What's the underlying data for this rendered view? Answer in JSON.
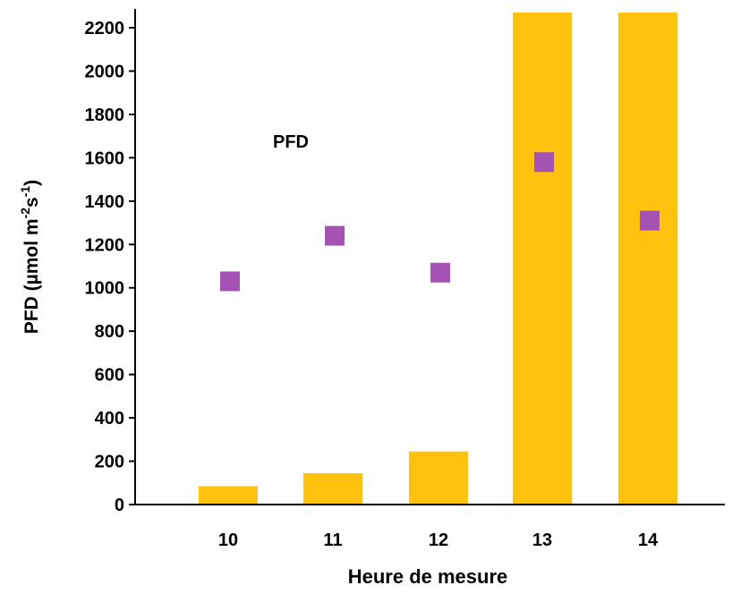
{
  "chart_data": {
    "type": "bar",
    "title": "",
    "annotation": "PFD",
    "xlabel": "Heure de mesure",
    "ylabel": {
      "prefix": "PFD (µmol m",
      "sup1": "-2",
      "mid": "s",
      "sup2": "-1",
      "suffix": ")"
    },
    "ylim": [
      0,
      2200
    ],
    "y_ticks": [
      0,
      200,
      400,
      600,
      800,
      1000,
      1200,
      1400,
      1600,
      1800,
      2000,
      2200
    ],
    "categories": [
      "10",
      "11",
      "12",
      "13",
      "14"
    ],
    "series": [
      {
        "kind": "bar",
        "color": "#FFC20E",
        "values": [
          85,
          145,
          245,
          2270,
          2270
        ]
      },
      {
        "kind": "scatter",
        "marker": "square",
        "color": "#A552B5",
        "values": [
          1030,
          1240,
          1070,
          1580,
          1310
        ]
      }
    ],
    "grid": false,
    "legend": "none"
  }
}
